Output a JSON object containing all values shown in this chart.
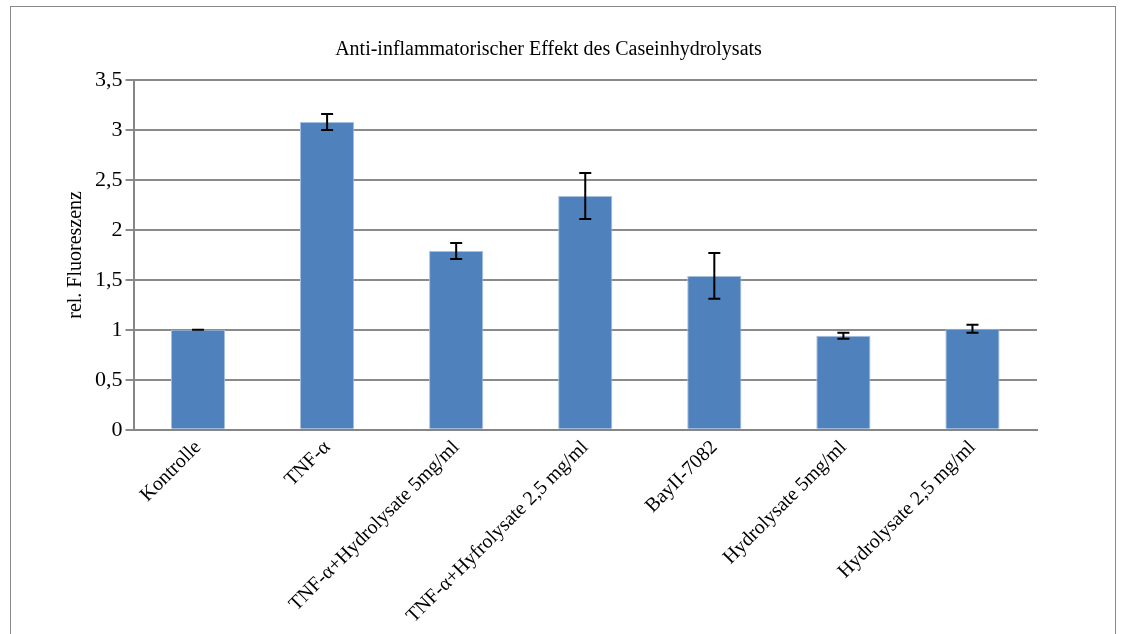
{
  "chart_data": {
    "type": "bar",
    "title": "Anti-inflammatorischer Effekt des Caseinhydrolysats",
    "ylabel": "rel. Fluoreszenz",
    "categories": [
      "Kontrolle",
      "TNF-α",
      "TNF-α+Hydrolysate 5mg/ml",
      "TNF-α+Hyfrolysate 2,5 mg/ml",
      "BayII-7082",
      "Hydrolysate 5mg/ml",
      "Hydrolysate 2,5 mg/ml"
    ],
    "values": [
      1.0,
      3.08,
      1.79,
      2.34,
      1.54,
      0.94,
      1.01
    ],
    "errors": [
      0,
      0.08,
      0.08,
      0.23,
      0.23,
      0.03,
      0.04
    ],
    "color": "#4f81bd",
    "ylim": [
      0,
      3.5
    ],
    "yticks": [
      {
        "value": 0,
        "label": "0"
      },
      {
        "value": 0.5,
        "label": "0,5"
      },
      {
        "value": 1,
        "label": "1"
      },
      {
        "value": 1.5,
        "label": "1,5"
      },
      {
        "value": 2,
        "label": "2"
      },
      {
        "value": 2.5,
        "label": "2,5"
      },
      {
        "value": 3,
        "label": "3"
      },
      {
        "value": 3.5,
        "label": "3,5"
      }
    ],
    "grid": "y",
    "legend": false
  }
}
